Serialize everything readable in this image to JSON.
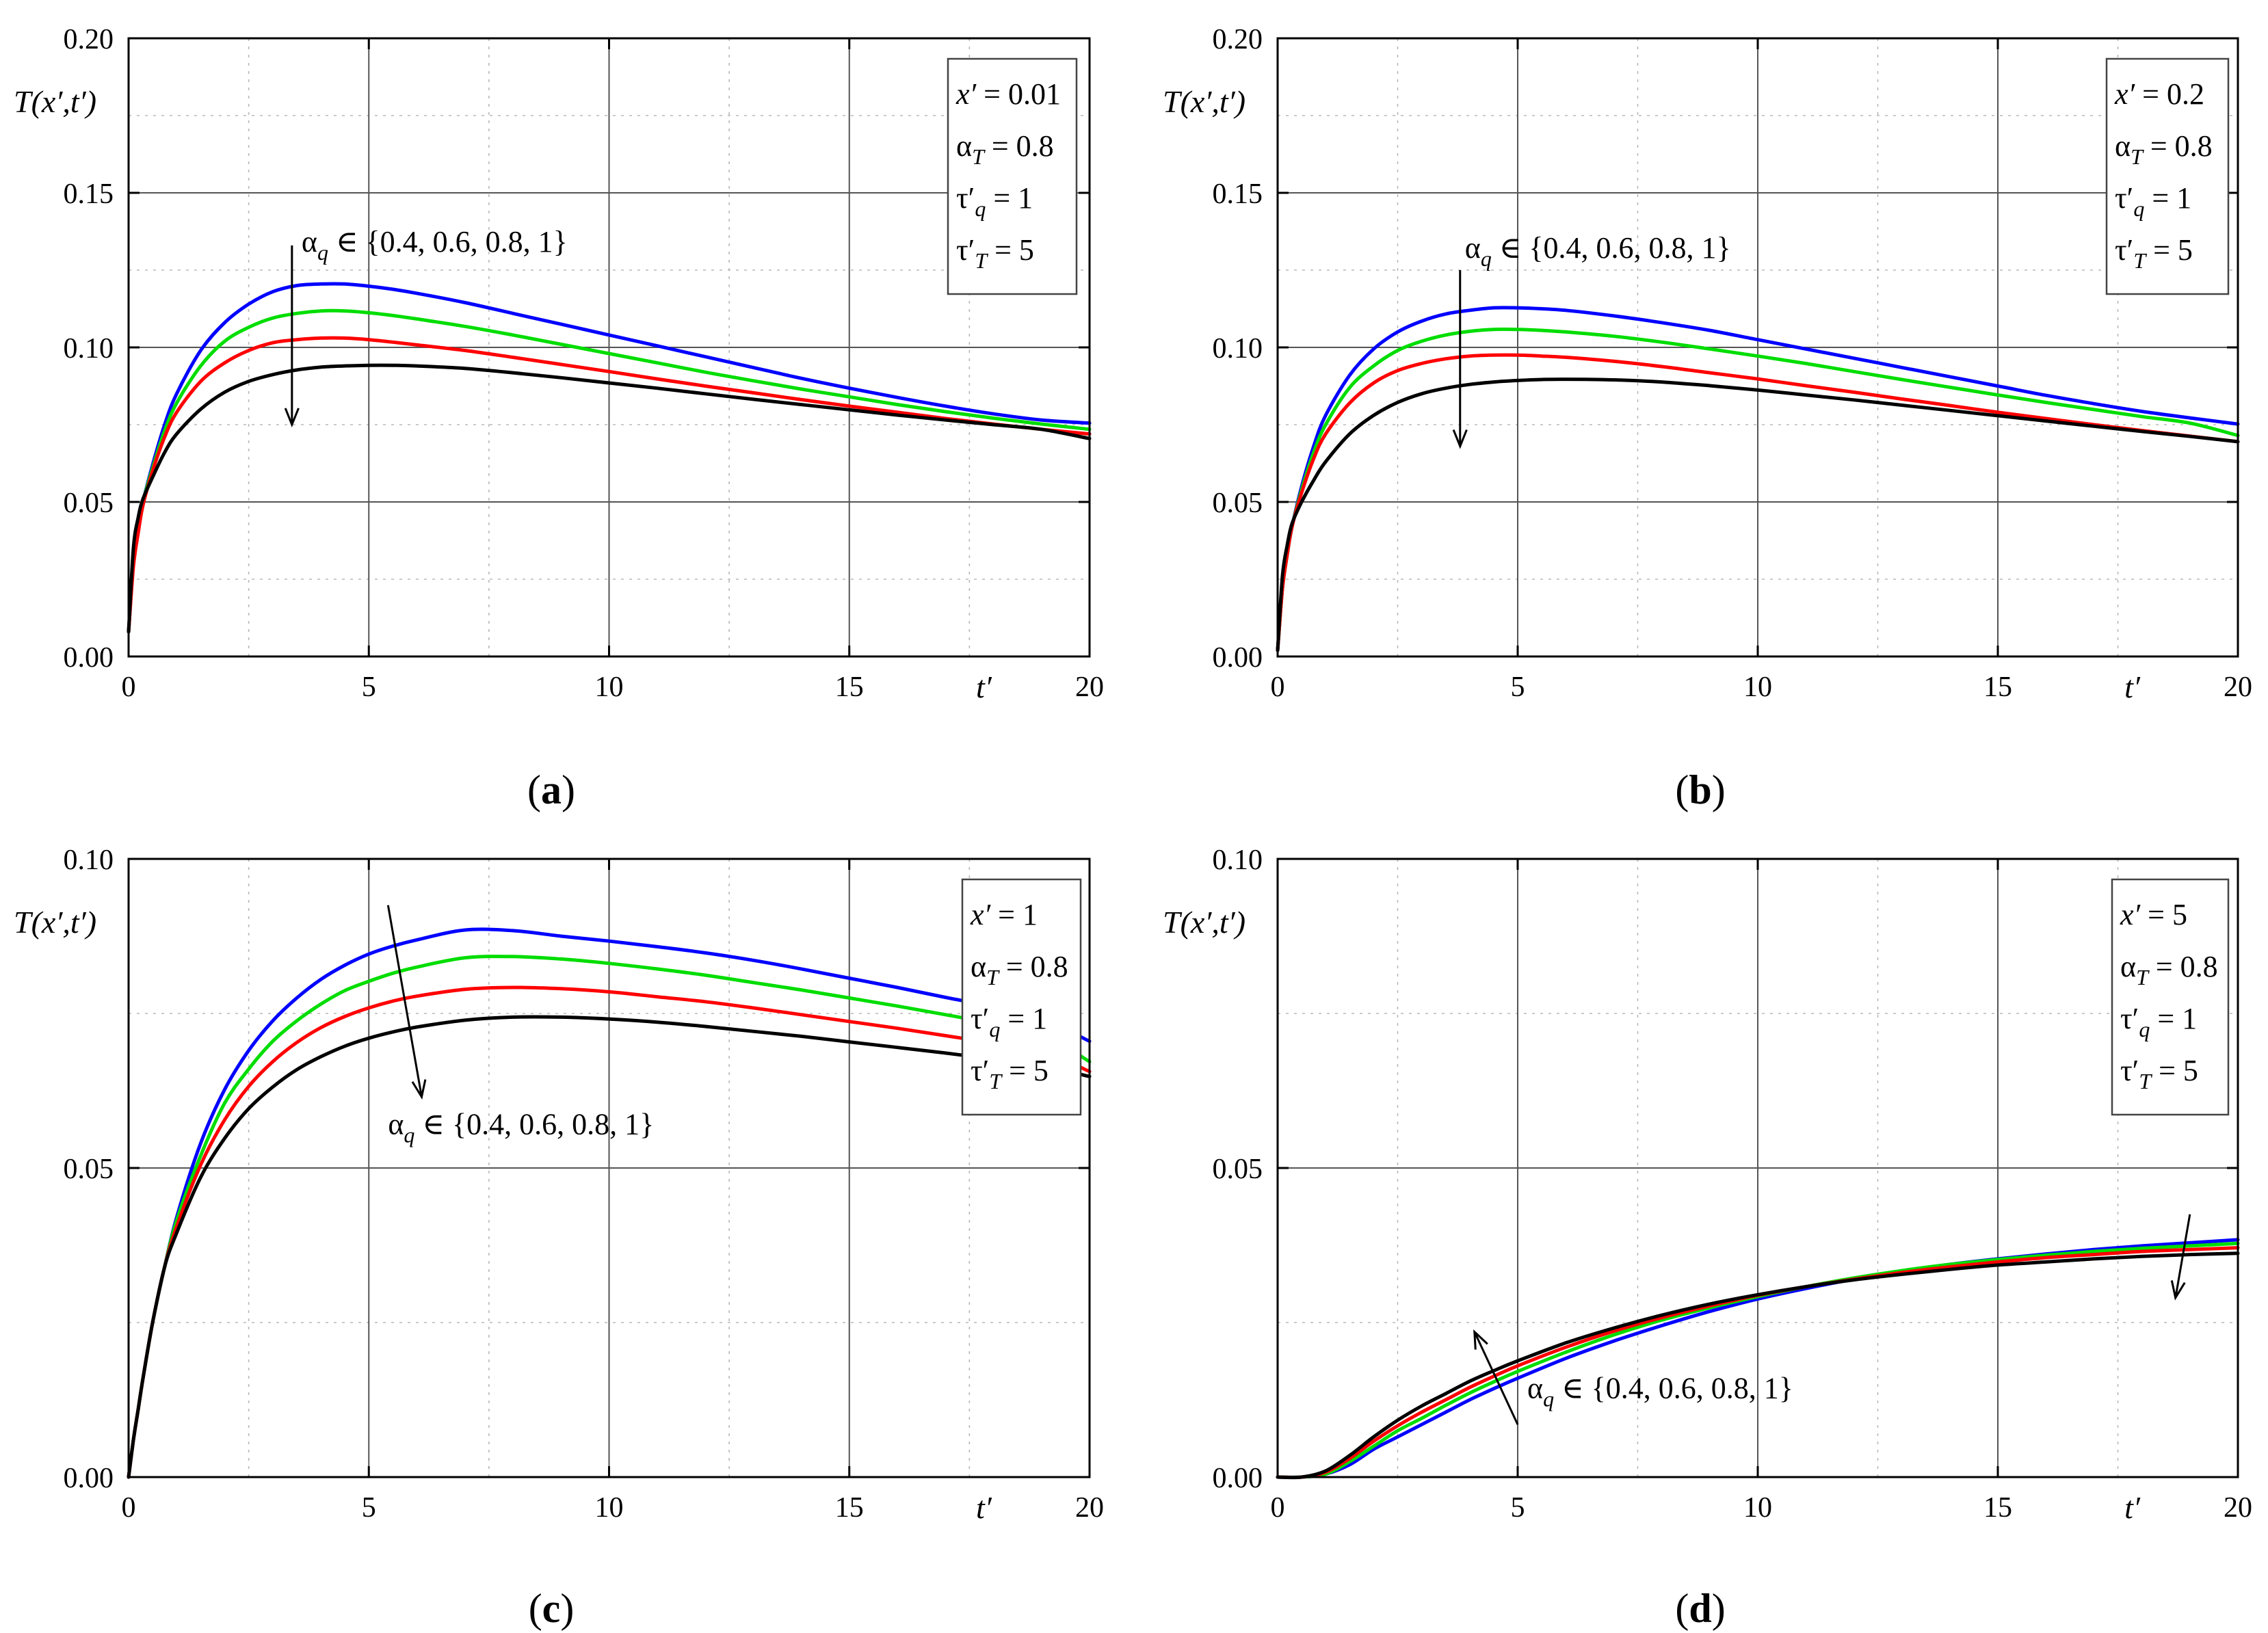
{
  "chart_data": [
    {
      "id": "a",
      "type": "line",
      "caption": "a",
      "xlabel": "t′",
      "ylabel": "T(x′,t′)",
      "xlim": [
        0,
        20
      ],
      "ylim": [
        0,
        0.2
      ],
      "xticks": [
        0,
        5,
        10,
        15,
        20
      ],
      "xtick_labels": [
        "0",
        "5",
        "10",
        "15",
        "20"
      ],
      "yticks": [
        0,
        0.05,
        0.1,
        0.15,
        0.2
      ],
      "ytick_labels": [
        "0.00",
        "0.05",
        "0.10",
        "0.15",
        "0.20"
      ],
      "grid": true,
      "legend_position": "top-right",
      "params": [
        "x′ = 0.01",
        "αT = 0.8",
        "τ′q = 1",
        "τ′T = 5"
      ],
      "annotation": "αq ∈ {0.4, 0.6, 0.8, 1}",
      "x": [
        0,
        0.1,
        0.2,
        0.3,
        0.5,
        0.75,
        1,
        1.5,
        2,
        2.5,
        3,
        3.5,
        4,
        4.5,
        5,
        5.5,
        6,
        7,
        8,
        9,
        10,
        11,
        12,
        13,
        14,
        15,
        16,
        17,
        18,
        19,
        20
      ],
      "series": [
        {
          "name": "αq = 0.4",
          "color": "#0000ff",
          "values": [
            0.008,
            0.03,
            0.041,
            0.05,
            0.062,
            0.075,
            0.085,
            0.099,
            0.108,
            0.114,
            0.118,
            0.12,
            0.1205,
            0.1205,
            0.1198,
            0.1188,
            0.1175,
            0.1145,
            0.111,
            0.1075,
            0.104,
            0.1005,
            0.097,
            0.0935,
            0.09,
            0.0868,
            0.0838,
            0.081,
            0.0785,
            0.0765,
            0.0755
          ]
        },
        {
          "name": "αq = 0.6",
          "color": "#00dd00",
          "values": [
            0.008,
            0.03,
            0.041,
            0.05,
            0.061,
            0.073,
            0.082,
            0.094,
            0.102,
            0.1065,
            0.1095,
            0.111,
            0.1118,
            0.1118,
            0.1112,
            0.1103,
            0.1092,
            0.1068,
            0.104,
            0.101,
            0.098,
            0.095,
            0.092,
            0.0892,
            0.0865,
            0.084,
            0.0815,
            0.0792,
            0.0771,
            0.0752,
            0.0735
          ]
        },
        {
          "name": "αq = 0.8",
          "color": "#ff0000",
          "values": [
            0.008,
            0.029,
            0.04,
            0.049,
            0.06,
            0.071,
            0.079,
            0.089,
            0.095,
            0.099,
            0.1015,
            0.1025,
            0.103,
            0.103,
            0.1025,
            0.1017,
            0.1008,
            0.099,
            0.0968,
            0.0945,
            0.0922,
            0.0898,
            0.0875,
            0.0853,
            0.0831,
            0.081,
            0.079,
            0.077,
            0.0752,
            0.0735,
            0.072
          ]
        },
        {
          "name": "αq = 1",
          "color": "#000000",
          "values": [
            0.008,
            0.035,
            0.045,
            0.051,
            0.058,
            0.066,
            0.072,
            0.08,
            0.0855,
            0.089,
            0.0912,
            0.0927,
            0.0936,
            0.094,
            0.0942,
            0.0942,
            0.094,
            0.0932,
            0.0918,
            0.0902,
            0.0885,
            0.0868,
            0.085,
            0.0832,
            0.0815,
            0.0798,
            0.0781,
            0.0765,
            0.075,
            0.0735,
            0.0705
          ]
        }
      ],
      "arrow": {
        "from": [
          3.4,
          0.133
        ],
        "to": [
          3.4,
          0.075
        ],
        "type": "down"
      },
      "annotation_pos": [
        3.6,
        0.131
      ]
    },
    {
      "id": "b",
      "type": "line",
      "caption": "b",
      "xlabel": "t′",
      "ylabel": "T(x′,t′)",
      "xlim": [
        0,
        20
      ],
      "ylim": [
        0,
        0.2
      ],
      "xticks": [
        0,
        5,
        10,
        15,
        20
      ],
      "xtick_labels": [
        "0",
        "5",
        "10",
        "15",
        "20"
      ],
      "yticks": [
        0,
        0.05,
        0.1,
        0.15,
        0.2
      ],
      "ytick_labels": [
        "0.00",
        "0.05",
        "0.10",
        "0.15",
        "0.20"
      ],
      "grid": true,
      "legend_position": "top-right",
      "params": [
        "x′ = 0.2",
        "αT = 0.8",
        "τ′q = 1",
        "τ′T = 5"
      ],
      "annotation": "αq ∈ {0.4, 0.6, 0.8, 1}",
      "x": [
        0,
        0.1,
        0.2,
        0.3,
        0.5,
        0.75,
        1,
        1.5,
        2,
        2.5,
        3,
        3.5,
        4,
        4.5,
        5,
        5.5,
        6,
        7,
        8,
        9,
        10,
        11,
        12,
        13,
        14,
        15,
        16,
        17,
        18,
        19,
        20
      ],
      "series": [
        {
          "name": "αq = 0.4",
          "color": "#0000ff",
          "values": [
            0.002,
            0.022,
            0.033,
            0.042,
            0.055,
            0.068,
            0.078,
            0.091,
            0.0995,
            0.105,
            0.1085,
            0.1108,
            0.112,
            0.1128,
            0.1128,
            0.1125,
            0.112,
            0.1102,
            0.108,
            0.1055,
            0.1025,
            0.0995,
            0.0965,
            0.0935,
            0.0905,
            0.0875,
            0.0845,
            0.0818,
            0.0793,
            0.0772,
            0.0752
          ]
        },
        {
          "name": "αq = 0.6",
          "color": "#00dd00",
          "values": [
            0.002,
            0.022,
            0.033,
            0.042,
            0.054,
            0.066,
            0.075,
            0.087,
            0.094,
            0.099,
            0.102,
            0.104,
            0.1052,
            0.1058,
            0.1058,
            0.1055,
            0.105,
            0.1036,
            0.1017,
            0.0995,
            0.0972,
            0.0948,
            0.0922,
            0.0896,
            0.0871,
            0.0846,
            0.0822,
            0.0799,
            0.0776,
            0.0755,
            0.0715
          ]
        },
        {
          "name": "αq = 0.8",
          "color": "#ff0000",
          "values": [
            0.002,
            0.022,
            0.033,
            0.042,
            0.053,
            0.064,
            0.072,
            0.082,
            0.0885,
            0.0925,
            0.0948,
            0.0963,
            0.0972,
            0.0975,
            0.0975,
            0.0972,
            0.0968,
            0.0955,
            0.0938,
            0.0918,
            0.0898,
            0.0876,
            0.0855,
            0.0833,
            0.0812,
            0.079,
            0.077,
            0.075,
            0.0731,
            0.0713,
            0.0695
          ]
        },
        {
          "name": "αq = 1",
          "color": "#000000",
          "values": [
            0.002,
            0.026,
            0.036,
            0.043,
            0.05,
            0.057,
            0.063,
            0.072,
            0.078,
            0.0822,
            0.085,
            0.0868,
            0.088,
            0.0888,
            0.0893,
            0.0896,
            0.0897,
            0.0895,
            0.0888,
            0.0876,
            0.0862,
            0.0846,
            0.083,
            0.0813,
            0.0796,
            0.0779,
            0.0762,
            0.0745,
            0.0728,
            0.0712,
            0.0695
          ]
        }
      ],
      "arrow": {
        "from": [
          3.8,
          0.125
        ],
        "to": [
          3.8,
          0.068
        ],
        "type": "down"
      },
      "annotation_pos": [
        3.9,
        0.129
      ]
    },
    {
      "id": "c",
      "type": "line",
      "caption": "c",
      "xlabel": "t′",
      "ylabel": "T(x′,t′)",
      "xlim": [
        0,
        20
      ],
      "ylim": [
        0,
        0.1
      ],
      "xticks": [
        0,
        5,
        10,
        15,
        20
      ],
      "xtick_labels": [
        "0",
        "5",
        "10",
        "15",
        "20"
      ],
      "yticks": [
        0,
        0.05,
        0.1
      ],
      "ytick_labels": [
        "0.00",
        "0.05",
        "0.10"
      ],
      "grid": true,
      "legend_position": "top-right",
      "params": [
        "x′ = 1",
        "αT = 0.8",
        "τ′q = 1",
        "τ′T = 5"
      ],
      "annotation": "αq ∈ {0.4, 0.6, 0.8, 1}",
      "x": [
        0,
        0.1,
        0.2,
        0.3,
        0.5,
        0.75,
        1,
        1.5,
        2,
        2.5,
        3,
        3.5,
        4,
        4.5,
        5,
        5.5,
        6,
        7,
        8,
        9,
        10,
        11,
        12,
        13,
        14,
        15,
        16,
        17,
        18,
        19,
        20
      ],
      "series": [
        {
          "name": "αq = 0.4",
          "color": "#0000ff",
          "values": [
            0,
            0.006,
            0.011,
            0.016,
            0.025,
            0.034,
            0.042,
            0.054,
            0.0627,
            0.069,
            0.0738,
            0.0775,
            0.0805,
            0.0828,
            0.0846,
            0.0859,
            0.0869,
            0.0885,
            0.0884,
            0.0875,
            0.0867,
            0.0858,
            0.0848,
            0.0836,
            0.0822,
            0.0807,
            0.0792,
            0.0776,
            0.0761,
            0.0742,
            0.0705
          ]
        },
        {
          "name": "αq = 0.6",
          "color": "#00dd00",
          "values": [
            0,
            0.006,
            0.011,
            0.016,
            0.025,
            0.034,
            0.0415,
            0.052,
            0.0605,
            0.066,
            0.0705,
            0.0738,
            0.0765,
            0.0787,
            0.0802,
            0.0815,
            0.0825,
            0.084,
            0.0842,
            0.0838,
            0.0831,
            0.0822,
            0.0812,
            0.08,
            0.0788,
            0.0775,
            0.0762,
            0.0748,
            0.0734,
            0.0718,
            0.0672
          ]
        },
        {
          "name": "αq = 0.8",
          "color": "#ff0000",
          "values": [
            0,
            0.006,
            0.011,
            0.016,
            0.025,
            0.034,
            0.0405,
            0.0505,
            0.0578,
            0.0632,
            0.0672,
            0.0703,
            0.0727,
            0.0745,
            0.0759,
            0.077,
            0.0778,
            0.0789,
            0.0792,
            0.079,
            0.0785,
            0.0777,
            0.0769,
            0.0759,
            0.0748,
            0.0737,
            0.0726,
            0.0714,
            0.0702,
            0.069,
            0.0656
          ]
        },
        {
          "name": "αq = 1",
          "color": "#000000",
          "values": [
            0,
            0.006,
            0.011,
            0.016,
            0.025,
            0.034,
            0.0395,
            0.0485,
            0.0548,
            0.0596,
            0.0631,
            0.0659,
            0.068,
            0.0697,
            0.071,
            0.072,
            0.0728,
            0.0739,
            0.0744,
            0.0744,
            0.0741,
            0.0736,
            0.0729,
            0.0721,
            0.0713,
            0.0704,
            0.0695,
            0.0686,
            0.0676,
            0.0666,
            0.0648
          ]
        }
      ],
      "arrow": {
        "from": [
          5.4,
          0.0925
        ],
        "to": [
          6.1,
          0.0615
        ],
        "type": "down"
      },
      "annotation_pos": [
        5.4,
        0.0555
      ]
    },
    {
      "id": "d",
      "type": "line",
      "caption": "d",
      "xlabel": "t′",
      "ylabel": "T(x′,t′)",
      "xlim": [
        0,
        20
      ],
      "ylim": [
        0,
        0.1
      ],
      "xticks": [
        0,
        5,
        10,
        15,
        20
      ],
      "xtick_labels": [
        "0",
        "5",
        "10",
        "15",
        "20"
      ],
      "yticks": [
        0,
        0.05,
        0.1
      ],
      "ytick_labels": [
        "0.00",
        "0.05",
        "0.10"
      ],
      "grid": true,
      "legend_position": "top-right",
      "params": [
        "x′ = 5",
        "αT = 0.8",
        "τ′q = 1",
        "τ′T = 5"
      ],
      "annotation": "αq ∈ {0.4, 0.6, 0.8, 1}",
      "x": [
        0,
        0.5,
        1,
        1.5,
        2,
        2.5,
        3,
        3.5,
        4,
        4.5,
        5,
        6,
        7,
        8,
        9,
        10,
        11,
        12,
        13,
        14,
        15,
        16,
        17,
        18,
        19,
        20
      ],
      "series": [
        {
          "name": "αq = 0.4",
          "color": "#0000ff",
          "values": [
            0,
            0,
            0.0005,
            0.002,
            0.0045,
            0.0065,
            0.0085,
            0.0105,
            0.0125,
            0.0143,
            0.016,
            0.0192,
            0.022,
            0.0245,
            0.0268,
            0.0288,
            0.0305,
            0.032,
            0.0333,
            0.0344,
            0.0353,
            0.0361,
            0.0368,
            0.0374,
            0.0379,
            0.0384
          ]
        },
        {
          "name": "αq = 0.6",
          "color": "#00dd00",
          "values": [
            0,
            0,
            0.0005,
            0.0025,
            0.005,
            0.0075,
            0.0095,
            0.0116,
            0.0136,
            0.0154,
            0.0171,
            0.0202,
            0.023,
            0.0254,
            0.0274,
            0.0292,
            0.0308,
            0.0322,
            0.0334,
            0.0344,
            0.0352,
            0.0359,
            0.0365,
            0.037,
            0.0374,
            0.0378
          ]
        },
        {
          "name": "αq = 0.8",
          "color": "#ff0000",
          "values": [
            0,
            0,
            0.0008,
            0.003,
            0.0058,
            0.0083,
            0.0105,
            0.0125,
            0.0145,
            0.0163,
            0.018,
            0.021,
            0.0236,
            0.0258,
            0.0277,
            0.0294,
            0.0308,
            0.032,
            0.0331,
            0.034,
            0.0348,
            0.0355,
            0.036,
            0.0365,
            0.0368,
            0.0371
          ]
        },
        {
          "name": "αq = 1",
          "color": "#000000",
          "values": [
            0,
            0,
            0.001,
            0.0035,
            0.0065,
            0.0092,
            0.0115,
            0.0135,
            0.0155,
            0.0172,
            0.0188,
            0.0217,
            0.0241,
            0.0262,
            0.028,
            0.0295,
            0.0308,
            0.0319,
            0.0328,
            0.0336,
            0.0343,
            0.0348,
            0.0353,
            0.0357,
            0.036,
            0.0362
          ]
        }
      ],
      "arrow_up": {
        "from": [
          5,
          0.0085
        ],
        "to": [
          4.1,
          0.0235
        ]
      },
      "arrow": {
        "from": [
          19,
          0.0425
        ],
        "to": [
          18.7,
          0.029
        ],
        "type": "down"
      },
      "annotation_pos": [
        5.2,
        0.0128
      ]
    }
  ]
}
